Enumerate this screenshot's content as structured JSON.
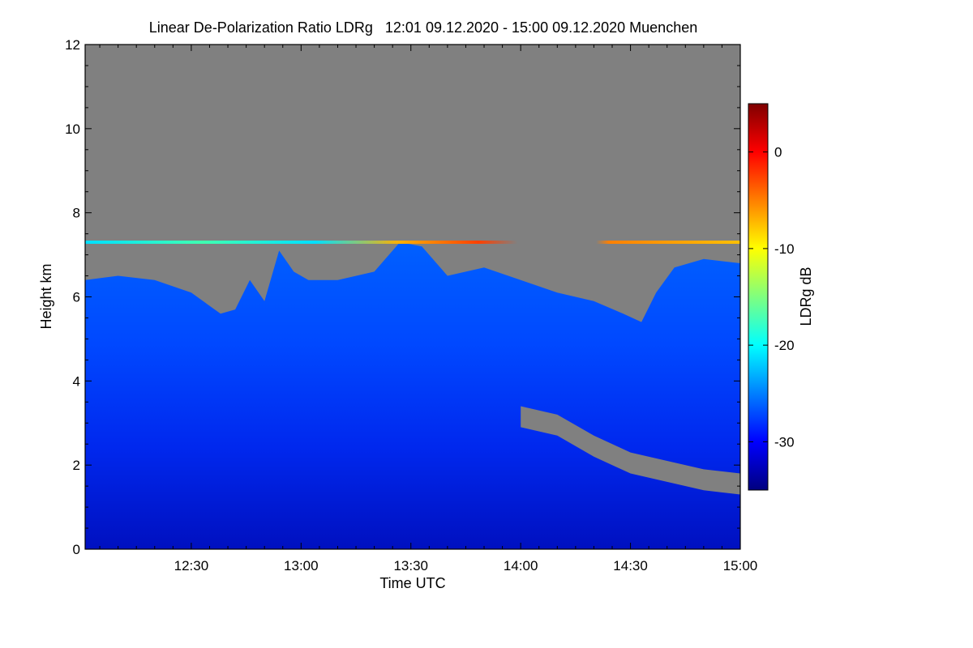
{
  "chart_data": {
    "type": "heatmap",
    "title": "Linear De-Polarization Ratio LDRg   12:01 09.12.2020 - 15:00 09.12.2020 Muenchen",
    "xlabel": "Time UTC",
    "ylabel": "Height km",
    "xlim": [
      "12:01",
      "15:00"
    ],
    "x_ticks": [
      "12:30",
      "13:00",
      "13:30",
      "14:00",
      "14:30",
      "15:00"
    ],
    "ylim": [
      0,
      12
    ],
    "y_ticks": [
      "0",
      "2",
      "4",
      "6",
      "8",
      "10",
      "12"
    ],
    "colorbar": {
      "label": "LDRg dB",
      "range": [
        -35,
        5
      ],
      "ticks": [
        "0",
        "-10",
        "-20",
        "-30"
      ],
      "colors": [
        "#00007f",
        "#0000ff",
        "#007fff",
        "#00ffff",
        "#7fff7f",
        "#ffff00",
        "#ff7f00",
        "#ff0000",
        "#7f0000"
      ]
    },
    "missing_color": "#808080",
    "cloud_top": {
      "time": [
        "12:01",
        "12:10",
        "12:20",
        "12:30",
        "12:38",
        "12:42",
        "12:46",
        "12:50",
        "12:54",
        "12:58",
        "13:02",
        "13:10",
        "13:20",
        "13:27",
        "13:33",
        "13:40",
        "13:50",
        "14:00",
        "14:10",
        "14:20",
        "14:28",
        "14:33",
        "14:37",
        "14:42",
        "14:50",
        "15:00"
      ],
      "height_km": [
        6.4,
        6.5,
        6.4,
        6.1,
        5.6,
        5.7,
        6.4,
        5.9,
        7.1,
        6.6,
        6.4,
        6.4,
        6.6,
        7.3,
        7.2,
        6.5,
        6.7,
        6.4,
        6.1,
        5.9,
        5.6,
        5.4,
        6.1,
        6.7,
        6.9,
        6.8
      ]
    },
    "cloud_base": {
      "time": [
        "14:00",
        "14:10",
        "14:20",
        "14:30",
        "14:40",
        "14:50",
        "15:00"
      ],
      "height_km": [
        2.9,
        2.7,
        2.2,
        1.8,
        1.6,
        1.4,
        1.3
      ]
    },
    "bright_band_height_km": 7.3
  }
}
